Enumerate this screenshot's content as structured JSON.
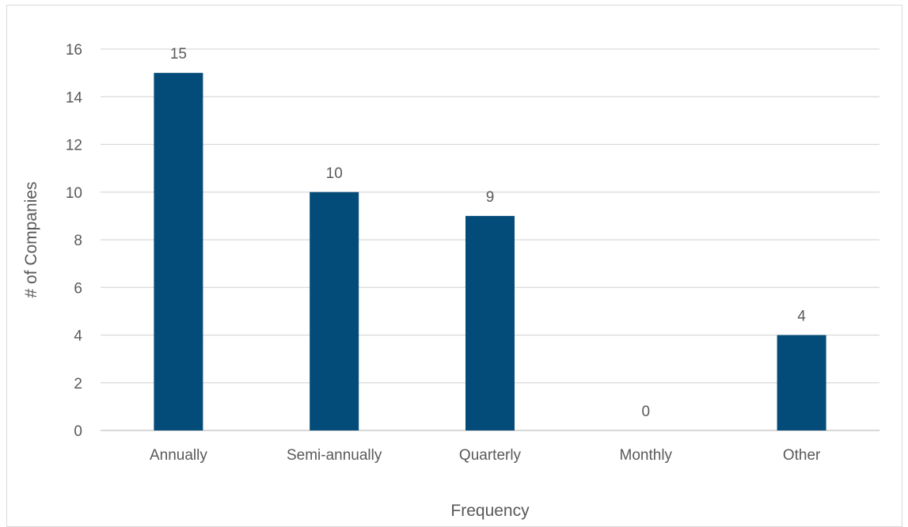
{
  "chart_data": {
    "type": "bar",
    "title": "",
    "xlabel": "Frequency",
    "ylabel": "# of Companies",
    "categories": [
      "Annually",
      "Semi-annually",
      "Quarterly",
      "Monthly",
      "Other"
    ],
    "values": [
      15,
      10,
      9,
      0,
      4
    ],
    "data_labels": [
      "15",
      "10",
      "9",
      "0",
      "4"
    ],
    "ylim": [
      0,
      16
    ],
    "yticks": [
      0,
      2,
      4,
      6,
      8,
      10,
      12,
      14,
      16
    ],
    "grid": true,
    "legend": "none",
    "colors": {
      "bar": "#034b79",
      "gridline": "#d9d9d9",
      "text": "#595959"
    }
  }
}
